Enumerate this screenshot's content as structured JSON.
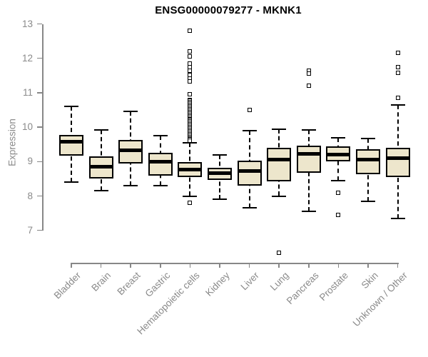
{
  "colors": {
    "box_fill": "#EDE6CC",
    "box_border": "#000000",
    "median": "#000000",
    "axis": "#878787",
    "text": "#8a8a8a",
    "title_color": "#000000",
    "background": "#ffffff"
  },
  "chart_data": {
    "type": "boxplot",
    "title": "ENSG00000079277 - MKNK1",
    "ylabel": "Expression",
    "xlabel": "",
    "ylim": [
      7,
      13
    ],
    "yticks": [
      7,
      8,
      9,
      10,
      11,
      12,
      13
    ],
    "grid": false,
    "legend": "none",
    "x_label_rotation_deg": 45,
    "categories": [
      "Bladder",
      "Brain",
      "Breast",
      "Gastric",
      "Hematopoietic cells",
      "Kidney",
      "Liver",
      "Lung",
      "Pancreas",
      "Prostate",
      "Skin",
      "Unknown / Other"
    ],
    "series": [
      {
        "name": "Bladder",
        "low": 8.4,
        "q1": 9.18,
        "median": 9.57,
        "q3": 9.77,
        "high": 10.6,
        "outliers": []
      },
      {
        "name": "Brain",
        "low": 8.15,
        "q1": 8.5,
        "median": 8.85,
        "q3": 9.15,
        "high": 9.92,
        "outliers": []
      },
      {
        "name": "Breast",
        "low": 8.3,
        "q1": 8.95,
        "median": 9.33,
        "q3": 9.62,
        "high": 10.45,
        "outliers": []
      },
      {
        "name": "Gastric",
        "low": 8.3,
        "q1": 8.6,
        "median": 9.0,
        "q3": 9.25,
        "high": 9.75,
        "outliers": []
      },
      {
        "name": "Hematopoietic cells",
        "low": 8.0,
        "q1": 8.55,
        "median": 8.76,
        "q3": 8.98,
        "high": 9.55,
        "outliers": [
          7.8,
          12.8,
          12.2,
          12.05,
          11.85,
          11.75,
          11.65,
          11.52,
          11.42,
          11.33,
          10.95,
          10.8,
          10.76,
          10.72,
          10.68,
          10.64,
          10.6,
          10.56,
          10.52,
          10.48,
          10.44,
          10.4,
          10.36,
          10.32,
          10.28,
          10.24,
          10.2,
          10.16,
          10.12,
          10.08,
          10.04,
          10.0,
          9.96,
          9.92,
          9.88,
          9.84,
          9.8,
          9.76,
          9.72,
          9.68,
          9.64,
          9.6
        ]
      },
      {
        "name": "Kidney",
        "low": 7.9,
        "q1": 8.47,
        "median": 8.67,
        "q3": 8.82,
        "high": 9.2,
        "outliers": []
      },
      {
        "name": "Liver",
        "low": 7.65,
        "q1": 8.3,
        "median": 8.72,
        "q3": 9.02,
        "high": 9.9,
        "outliers": [
          10.5
        ]
      },
      {
        "name": "Lung",
        "low": 8.0,
        "q1": 8.42,
        "median": 9.05,
        "q3": 9.4,
        "high": 9.95,
        "outliers": [
          6.35
        ]
      },
      {
        "name": "Pancreas",
        "low": 7.55,
        "q1": 8.68,
        "median": 9.22,
        "q3": 9.47,
        "high": 9.92,
        "outliers": [
          11.65,
          11.55,
          11.2
        ]
      },
      {
        "name": "Prostate",
        "low": 8.45,
        "q1": 9.0,
        "median": 9.2,
        "q3": 9.45,
        "high": 9.7,
        "outliers": [
          8.1,
          7.45
        ]
      },
      {
        "name": "Skin",
        "low": 7.85,
        "q1": 8.63,
        "median": 9.05,
        "q3": 9.35,
        "high": 9.67,
        "outliers": []
      },
      {
        "name": "Unknown / Other",
        "low": 7.35,
        "q1": 8.56,
        "median": 9.1,
        "q3": 9.4,
        "high": 10.65,
        "outliers": [
          12.15,
          11.75,
          11.58,
          10.85
        ]
      }
    ]
  }
}
